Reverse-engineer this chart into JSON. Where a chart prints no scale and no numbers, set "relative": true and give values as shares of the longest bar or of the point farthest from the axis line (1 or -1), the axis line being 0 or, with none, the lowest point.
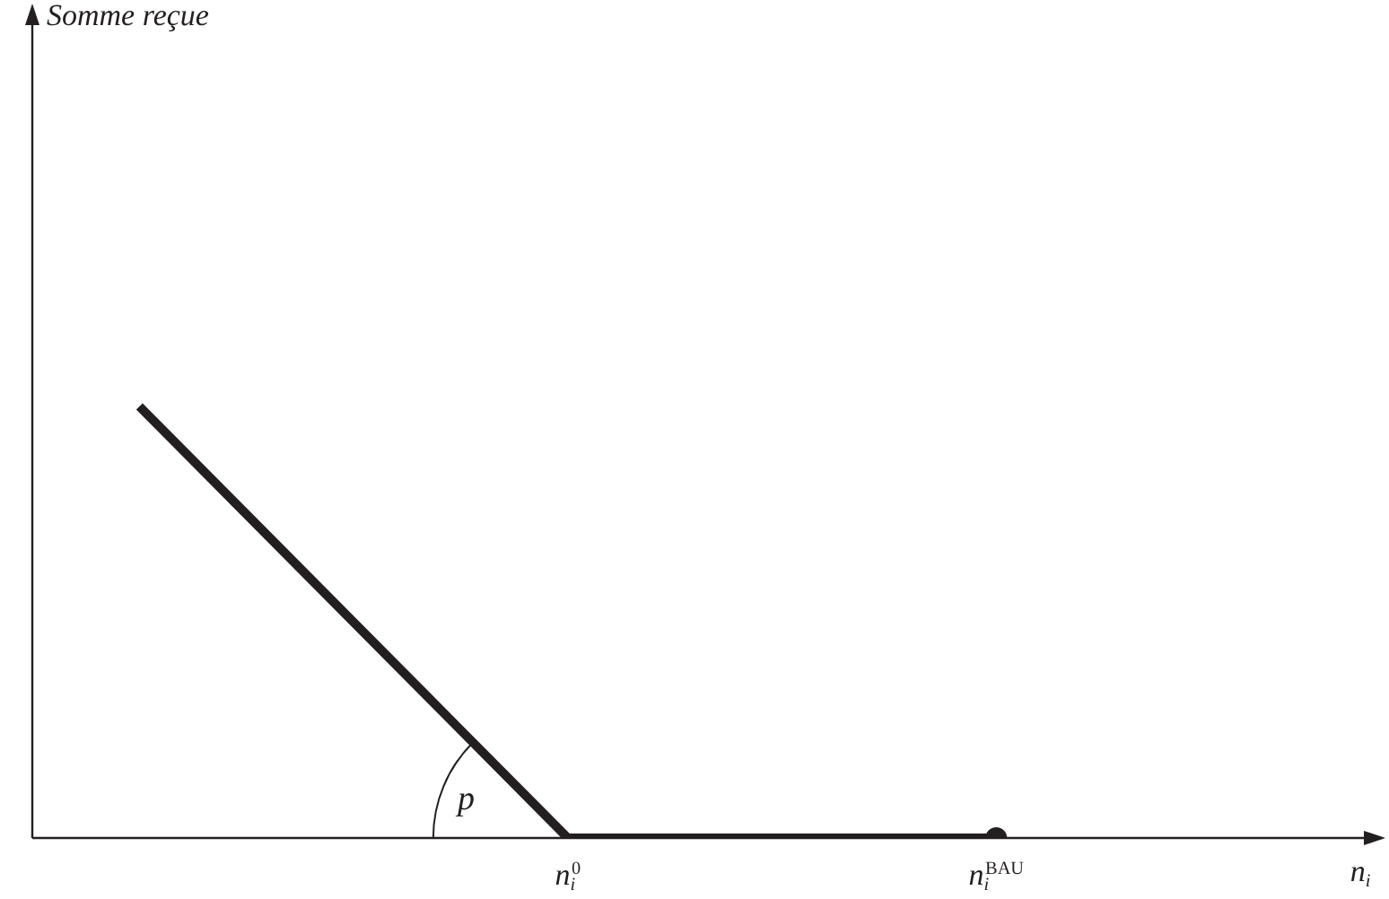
{
  "chart_data": {
    "type": "line",
    "relative": true,
    "xlabel": "n$_{i}$",
    "categories": [
      null,
      "n$_{i}$$^{0}$",
      "n$_{i}$$^{BAU}$"
    ],
    "series": [
      {
        "color": "#231f20",
        "values": [
          1,
          0,
          0
        ],
        "marker": "none",
        "line_style": "solid"
      },
      {
        "type": "scatter",
        "color": "#231f20",
        "values": [
          null,
          null,
          0
        ],
        "marker": "circle"
      }
    ],
    "annotations": [
      "Somme reçue",
      "p"
    ],
    "grid": false,
    "legend": false
  }
}
